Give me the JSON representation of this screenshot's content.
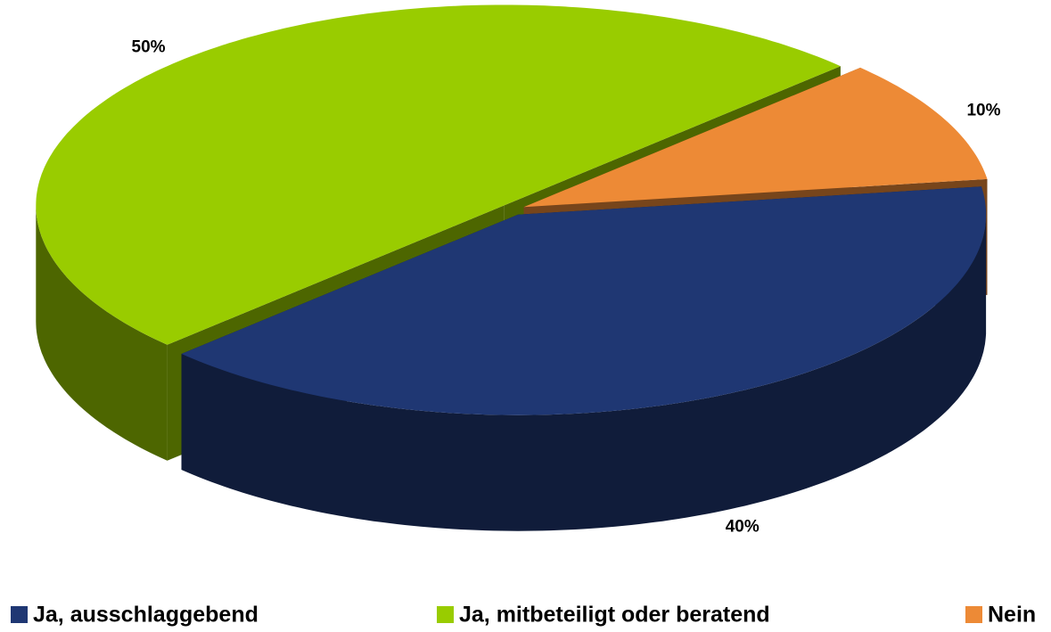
{
  "chart_data": {
    "type": "pie",
    "three_d": true,
    "categories": [
      "Ja, ausschlaggebend",
      "Ja, mitbeteiligt oder beratend",
      "Nein"
    ],
    "values": [
      40,
      50,
      10
    ],
    "value_labels": [
      "40%",
      "50%",
      "10%"
    ],
    "colors": [
      "#1f3773",
      "#99cc00",
      "#ed8a36"
    ],
    "legend": "bottom"
  }
}
